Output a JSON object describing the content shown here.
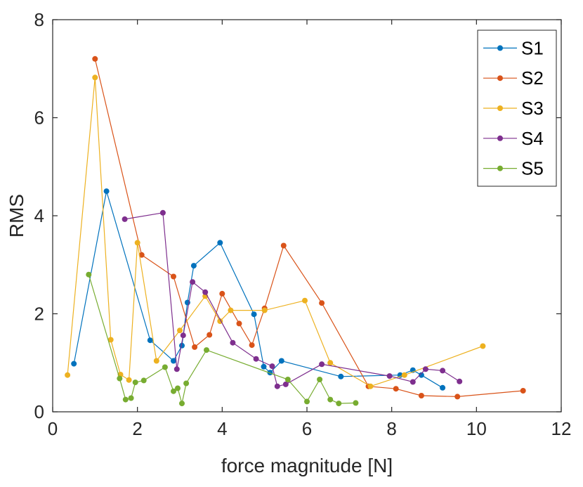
{
  "chart_data": {
    "type": "line",
    "title": "",
    "xlabel": "force magnitude [N]",
    "ylabel": "RMS",
    "xlim": [
      0,
      12
    ],
    "ylim": [
      0,
      8
    ],
    "xticks": [
      0,
      2,
      4,
      6,
      8,
      10,
      12
    ],
    "yticks": [
      0,
      2,
      4,
      6,
      8
    ],
    "grid": false,
    "legend_position": "top-right",
    "series": [
      {
        "name": "S1",
        "color": "#0072BD",
        "points": [
          [
            0.5,
            0.98
          ],
          [
            1.27,
            4.5
          ],
          [
            2.3,
            1.46
          ],
          [
            2.85,
            1.04
          ],
          [
            3.05,
            1.35
          ],
          [
            3.18,
            2.23
          ],
          [
            3.33,
            2.98
          ],
          [
            3.95,
            3.45
          ],
          [
            4.75,
            1.99
          ],
          [
            4.98,
            0.92
          ],
          [
            5.13,
            0.8
          ],
          [
            5.4,
            1.04
          ],
          [
            6.8,
            0.72
          ],
          [
            8.2,
            0.75
          ],
          [
            8.5,
            0.85
          ],
          [
            8.7,
            0.75
          ],
          [
            9.2,
            0.49
          ]
        ]
      },
      {
        "name": "S2",
        "color": "#D95319",
        "points": [
          [
            1.0,
            7.2
          ],
          [
            2.1,
            3.2
          ],
          [
            2.85,
            2.76
          ],
          [
            3.35,
            1.32
          ],
          [
            3.7,
            1.57
          ],
          [
            4.0,
            2.41
          ],
          [
            4.4,
            1.8
          ],
          [
            4.7,
            1.36
          ],
          [
            5.0,
            2.11
          ],
          [
            5.45,
            3.39
          ],
          [
            6.35,
            2.22
          ],
          [
            7.45,
            0.52
          ],
          [
            8.1,
            0.47
          ],
          [
            8.7,
            0.33
          ],
          [
            9.55,
            0.31
          ],
          [
            11.1,
            0.43
          ]
        ]
      },
      {
        "name": "S3",
        "color": "#EDB120",
        "points": [
          [
            0.35,
            0.75
          ],
          [
            1.0,
            6.82
          ],
          [
            1.37,
            1.47
          ],
          [
            1.6,
            0.76
          ],
          [
            1.8,
            0.65
          ],
          [
            2.0,
            3.45
          ],
          [
            2.45,
            1.04
          ],
          [
            3.0,
            1.66
          ],
          [
            3.6,
            2.36
          ],
          [
            3.95,
            1.85
          ],
          [
            4.2,
            2.07
          ],
          [
            5.0,
            2.07
          ],
          [
            5.95,
            2.27
          ],
          [
            6.55,
            1.0
          ],
          [
            7.5,
            0.52
          ],
          [
            8.3,
            0.75
          ],
          [
            10.15,
            1.34
          ]
        ]
      },
      {
        "name": "S4",
        "color": "#7E2F8E",
        "points": [
          [
            1.7,
            3.93
          ],
          [
            2.6,
            4.06
          ],
          [
            2.93,
            0.87
          ],
          [
            3.08,
            1.56
          ],
          [
            3.3,
            2.65
          ],
          [
            3.6,
            2.44
          ],
          [
            4.25,
            1.41
          ],
          [
            4.8,
            1.08
          ],
          [
            5.18,
            0.93
          ],
          [
            5.3,
            0.52
          ],
          [
            5.5,
            0.56
          ],
          [
            6.35,
            0.97
          ],
          [
            7.95,
            0.73
          ],
          [
            8.5,
            0.61
          ],
          [
            8.8,
            0.87
          ],
          [
            9.2,
            0.84
          ],
          [
            9.6,
            0.62
          ]
        ]
      },
      {
        "name": "S5",
        "color": "#77AC30",
        "points": [
          [
            0.85,
            2.8
          ],
          [
            1.58,
            0.68
          ],
          [
            1.72,
            0.25
          ],
          [
            1.85,
            0.28
          ],
          [
            1.95,
            0.6
          ],
          [
            2.15,
            0.64
          ],
          [
            2.65,
            0.91
          ],
          [
            2.85,
            0.42
          ],
          [
            2.95,
            0.48
          ],
          [
            3.05,
            0.17
          ],
          [
            3.15,
            0.58
          ],
          [
            3.63,
            1.26
          ],
          [
            5.55,
            0.66
          ],
          [
            6.0,
            0.21
          ],
          [
            6.3,
            0.66
          ],
          [
            6.55,
            0.25
          ],
          [
            6.75,
            0.17
          ],
          [
            7.15,
            0.18
          ]
        ]
      }
    ]
  }
}
